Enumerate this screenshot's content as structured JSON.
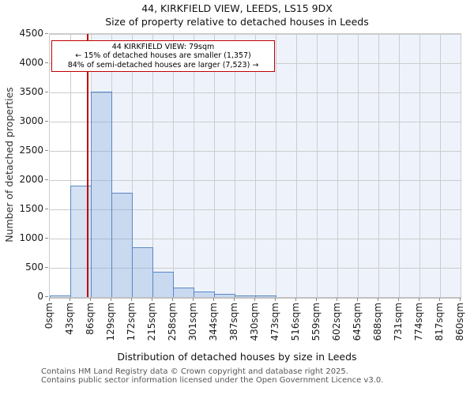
{
  "title": "44, KIRKFIELD VIEW, LEEDS, LS15 9DX",
  "subtitle": "Size of property relative to detached houses in Leeds",
  "annotation": {
    "line1": "44 KIRKFIELD VIEW: 79sqm",
    "line2": "← 15% of detached houses are smaller (1,357)",
    "line3": "84% of semi-detached houses are larger (7,523) →"
  },
  "chart_data": {
    "type": "bar",
    "title": "44, KIRKFIELD VIEW, LEEDS, LS15 9DX",
    "subtitle": "Size of property relative to detached houses in Leeds",
    "xlabel": "Distribution of detached houses by size in Leeds",
    "ylabel": "Number of detached properties",
    "bin_width_sqm": 43,
    "bin_edges": [
      0,
      43,
      86,
      129,
      172,
      215,
      258,
      301,
      344,
      387,
      430,
      473,
      516,
      559,
      602,
      645,
      688,
      731,
      774,
      817,
      860
    ],
    "x_tick_labels": [
      "0sqm",
      "43sqm",
      "86sqm",
      "129sqm",
      "172sqm",
      "215sqm",
      "258sqm",
      "301sqm",
      "344sqm",
      "387sqm",
      "430sqm",
      "473sqm",
      "516sqm",
      "559sqm",
      "602sqm",
      "645sqm",
      "688sqm",
      "731sqm",
      "774sqm",
      "817sqm",
      "860sqm"
    ],
    "values": [
      10,
      1910,
      3510,
      1780,
      855,
      430,
      165,
      90,
      50,
      27,
      16,
      0,
      0,
      0,
      0,
      0,
      0,
      0,
      0,
      0
    ],
    "y_ticks": [
      0,
      500,
      1000,
      1500,
      2000,
      2500,
      3000,
      3500,
      4000,
      4500
    ],
    "ylim": [
      0,
      4500
    ],
    "xlim_sqm": [
      0,
      860
    ],
    "grid": true,
    "marker_value_sqm": 79,
    "shade_from_sqm": 86,
    "legend": null
  },
  "footer": {
    "line1": "Contains HM Land Registry data © Crown copyright and database right 2025.",
    "line2": "Contains public sector information licensed under the Open Government Licence v3.0."
  },
  "colors": {
    "bar_fill": "rgba(114,158,214,0.30)",
    "bar_border": "#5b87c7",
    "shade": "#eef3fb",
    "grid": "#cccccc",
    "marker_red": "#c00000",
    "annotation_border": "#c00000",
    "text": "#111111",
    "footer_text": "#565656"
  }
}
